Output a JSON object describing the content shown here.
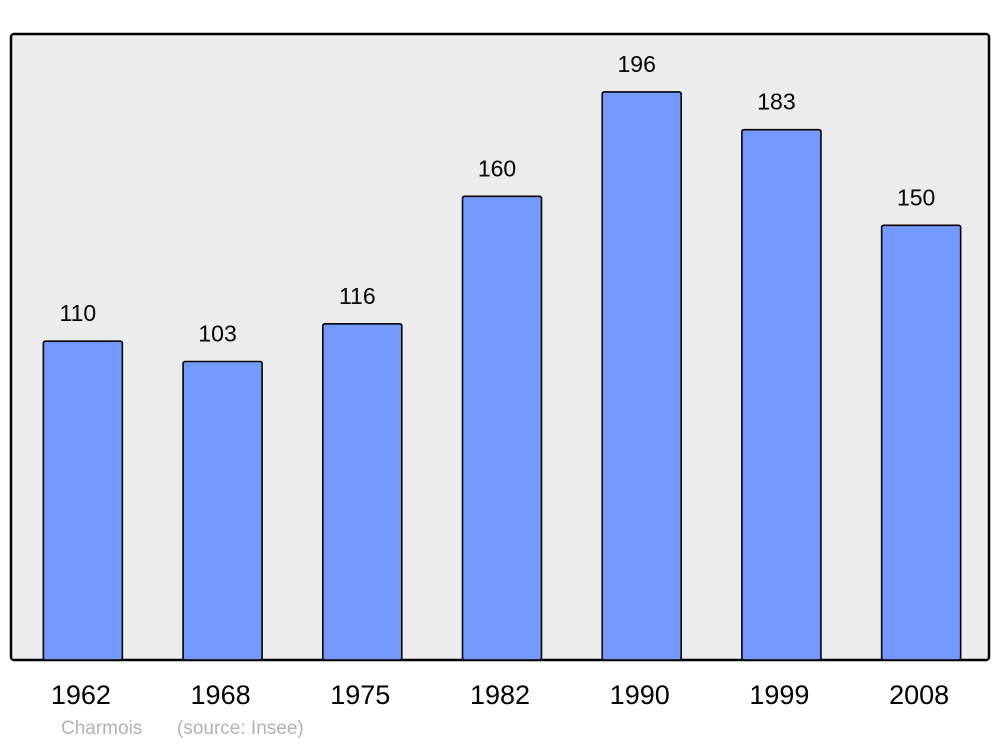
{
  "chart_data": {
    "type": "bar",
    "categories": [
      "1962",
      "1968",
      "1975",
      "1982",
      "1990",
      "1999",
      "2008"
    ],
    "values": [
      110,
      103,
      116,
      160,
      196,
      183,
      150
    ],
    "title": "",
    "xlabel": "",
    "ylabel": "",
    "ylim": [
      0,
      216
    ],
    "grid": false,
    "data_labels": true,
    "colors": {
      "bar": "#7399ff",
      "plot_background": "#ececec",
      "border": "#000000"
    }
  },
  "footer": {
    "commune": "Charmois",
    "source": "(source: Insee)"
  }
}
